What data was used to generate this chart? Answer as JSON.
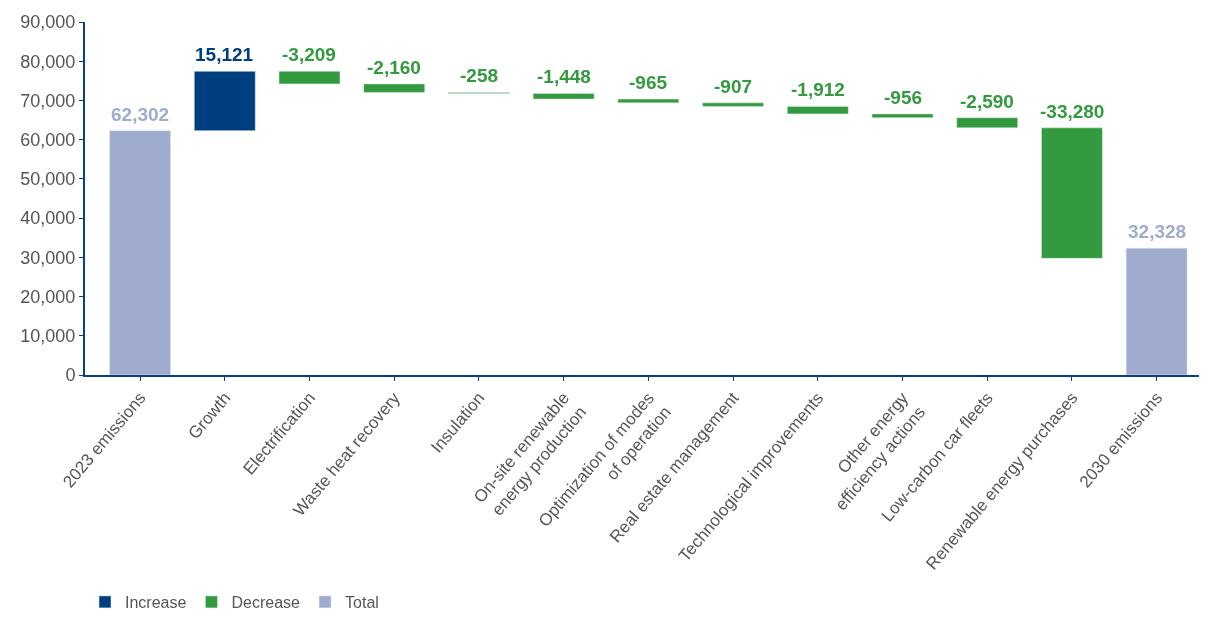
{
  "chart_data": {
    "type": "bar",
    "categories": [
      "2023 emissions",
      "Growth",
      "Electrification",
      "Waste heat recovery",
      "Insulation",
      "On-site renewable\nenergy production",
      "Optimization of modes\nof operation",
      "Real estate management",
      "Technological improvements",
      "Other energy\nefficiency actions",
      "Low-carbon car fleets",
      "Renewable energy purchases",
      "2030 emissions"
    ],
    "series": [
      {
        "name": "Increase",
        "color": "#003f7f",
        "values": [
          null,
          15121,
          null,
          null,
          null,
          null,
          null,
          null,
          null,
          null,
          null,
          null,
          null
        ],
        "base": [
          null,
          62302,
          null,
          null,
          null,
          null,
          null,
          null,
          null,
          null,
          null,
          null,
          null
        ],
        "value_labels": [
          null,
          "15,121",
          null,
          null,
          null,
          null,
          null,
          null,
          null,
          null,
          null,
          null,
          null
        ]
      },
      {
        "name": "Decrease",
        "color": "#339a3f",
        "values": [
          null,
          null,
          -3209,
          -2160,
          -258,
          -1448,
          -965,
          -907,
          -1912,
          -956,
          -2590,
          -33280,
          null
        ],
        "base": [
          null,
          null,
          77423,
          74214,
          72054,
          71796,
          70348,
          69383,
          68476,
          66564,
          65608,
          63018,
          null
        ],
        "value_labels": [
          null,
          null,
          "-3,209",
          "-2,160",
          "-258",
          "-1,448",
          "-965",
          "-907",
          "-1,912",
          "-956",
          "-2,590",
          "-33,280",
          null
        ]
      },
      {
        "name": "Total",
        "color": "#9facce",
        "values": [
          62302,
          null,
          null,
          null,
          null,
          null,
          null,
          null,
          null,
          null,
          null,
          null,
          32328
        ],
        "base": [
          0,
          null,
          null,
          null,
          null,
          null,
          null,
          null,
          null,
          null,
          null,
          null,
          0
        ],
        "value_labels": [
          "62,302",
          null,
          null,
          null,
          null,
          null,
          null,
          null,
          null,
          null,
          null,
          null,
          "32,328"
        ]
      }
    ],
    "ylim": [
      0,
      90000
    ],
    "yticks": [
      0,
      {
        "value": 10000,
        "label": "10,000"
      },
      {
        "value": 20000,
        "label": "20,000"
      },
      {
        "value": 30000,
        "label": "30,000"
      },
      {
        "value": 40000,
        "label": "40,000"
      },
      {
        "value": 50000,
        "label": "50,000"
      },
      {
        "value": 60000,
        "label": "60,000"
      },
      {
        "value": 70000,
        "label": "70,000"
      },
      {
        "value": 80000,
        "label": "80,000"
      },
      {
        "value": 90000,
        "label": "90,000"
      }
    ],
    "legend": "bottom left"
  }
}
